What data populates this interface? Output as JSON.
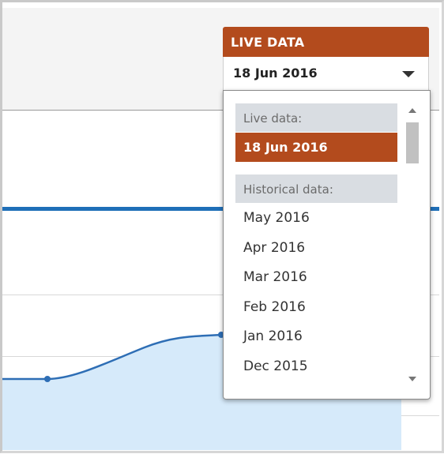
{
  "live_data_widget": {
    "header_label": "LIVE DATA",
    "selected_value": "18 Jun 2016",
    "caret_icon": "chevron-down-icon"
  },
  "dropdown": {
    "live_group_label": "Live data:",
    "live_option": "18 Jun 2016",
    "historical_group_label": "Historical data:",
    "historical_options": [
      "May 2016",
      "Apr 2016",
      "Mar 2016",
      "Feb 2016",
      "Jan 2016",
      "Dec 2015"
    ]
  },
  "colors": {
    "accent": "#b34b1d",
    "line": "#1f6fb8",
    "area_fill": "#d6eafa",
    "group_label_bg": "#d9dde2"
  }
}
